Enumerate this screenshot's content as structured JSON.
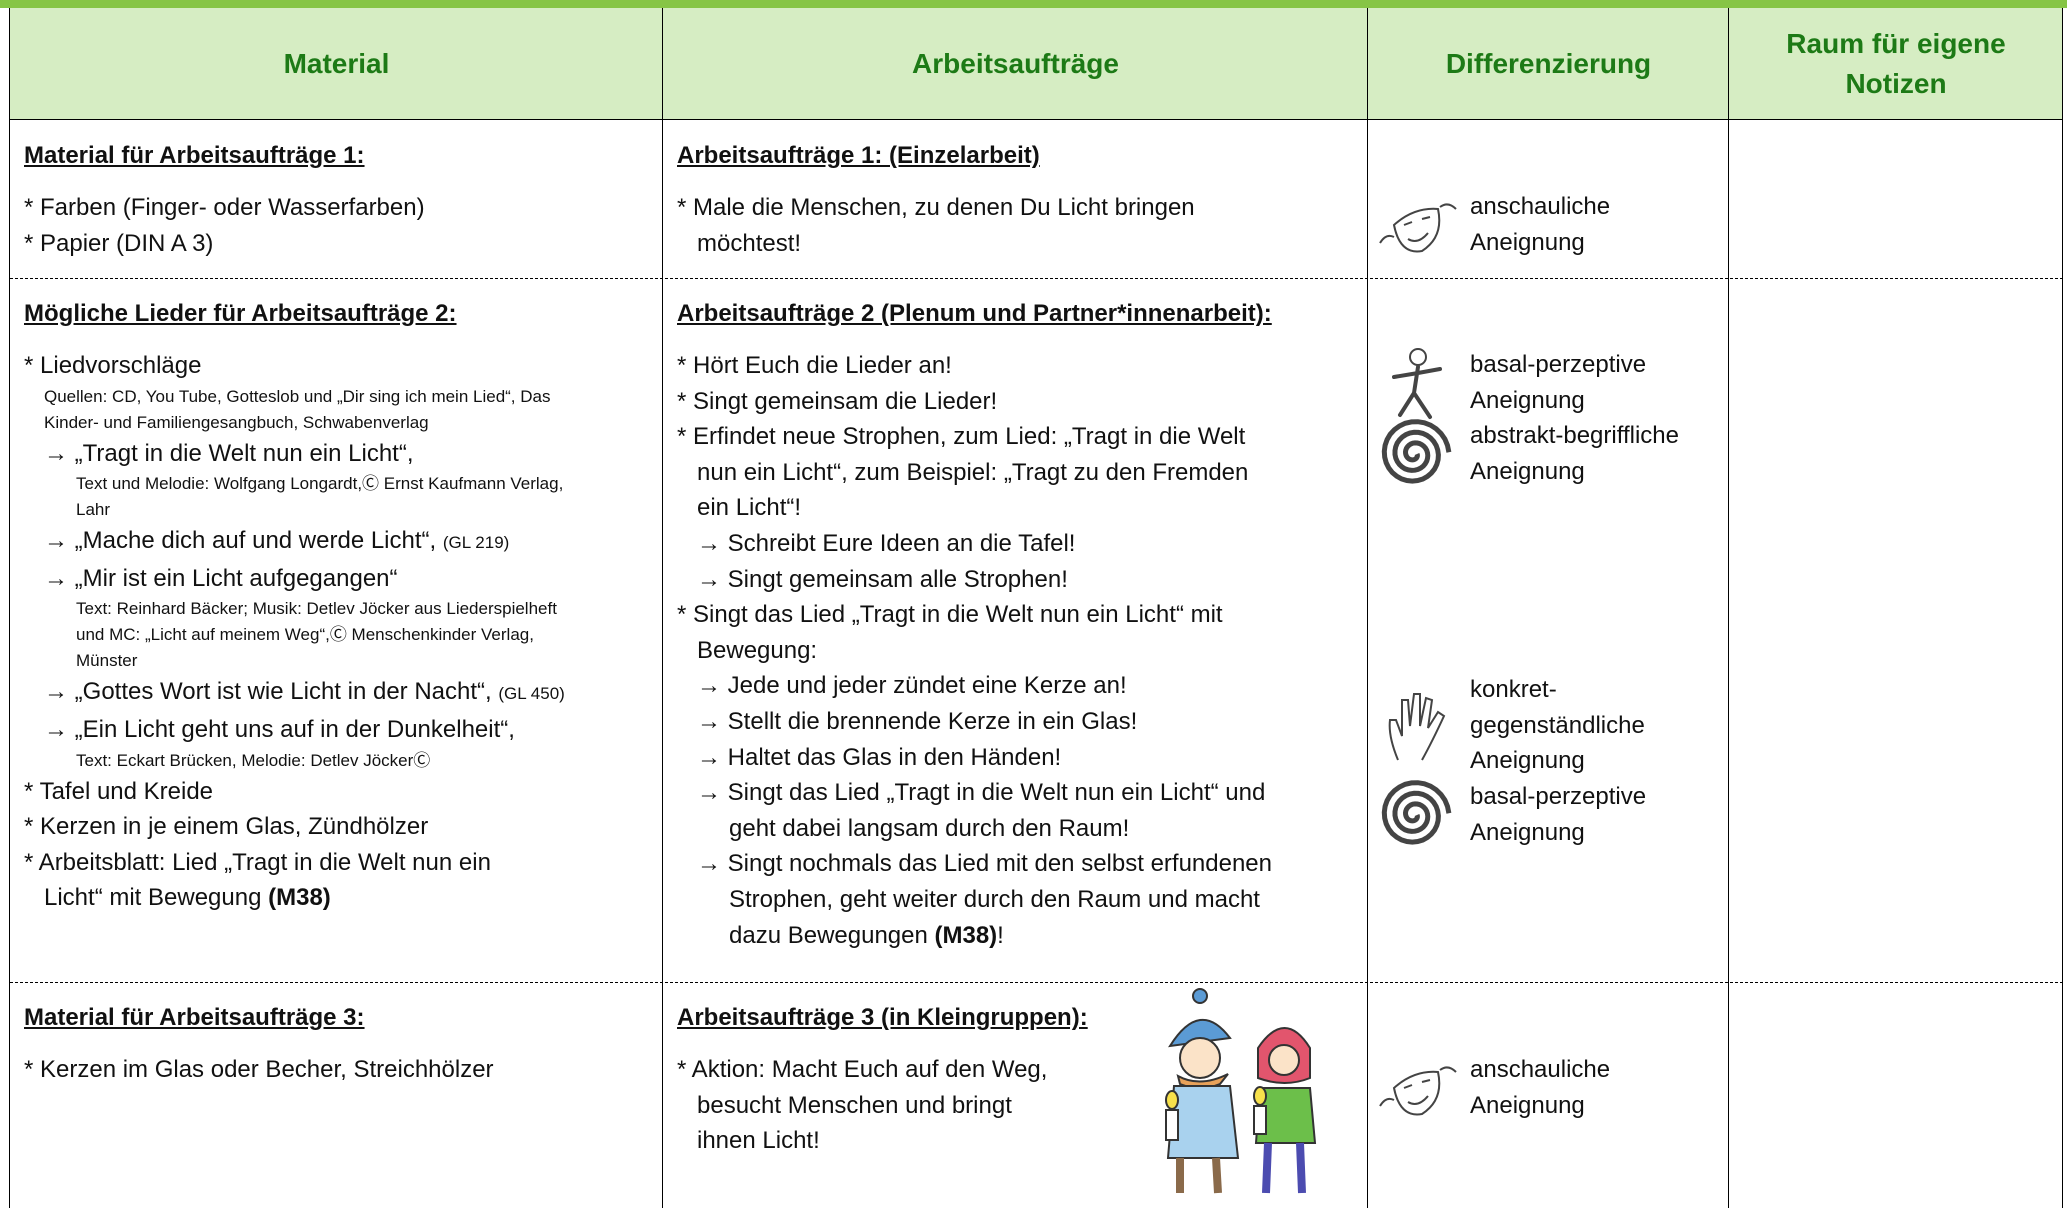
{
  "header": {
    "columns": [
      "Material",
      "Arbeitsaufträge",
      "Differenzierung",
      "Raum für eigene Notizen"
    ]
  },
  "rows": [
    {
      "material": {
        "heading": "Material für Arbeitsaufträge 1:",
        "items": [
          {
            "kind": "bullet",
            "lines": [
              "* Farben (Finger- oder Wasserfarben)"
            ]
          },
          {
            "kind": "bullet",
            "lines": [
              "* Papier (DIN A 3)"
            ]
          }
        ]
      },
      "tasks": {
        "heading": "Arbeitsaufträge 1: (Einzelarbeit)",
        "items": [
          {
            "kind": "bullet",
            "lines": [
              "* Male die Menschen, zu denen Du Licht bringen",
              "möchtest!"
            ]
          }
        ]
      },
      "differentiation": [
        {
          "lines": [
            "anschauliche",
            "Aneignung"
          ]
        }
      ]
    },
    {
      "material": {
        "heading": "Mögliche Lieder für Arbeitsaufträge 2:",
        "items": [
          {
            "kind": "bullet",
            "lines": [
              "* Liedvorschläge"
            ]
          },
          {
            "kind": "note",
            "lines": [
              "Quellen: CD, You Tube, Gotteslob und „Dir sing ich mein Lied“, Das",
              "Kinder- und Familiengesangbuch, Schwabenverlag"
            ]
          },
          {
            "kind": "arrow",
            "lines": [
              "→ „Tragt in die Welt nun ein Licht“,"
            ]
          },
          {
            "kind": "arrownote",
            "lines": [
              "Text und Melodie: Wolfgang Longardt,Ⓒ Ernst Kaufmann Verlag,",
              "Lahr"
            ]
          },
          {
            "kind": "arrow",
            "lines": [
              {
                "text": "→ „Mache dich auf und werde Licht“, ",
                "small": "(GL 219)"
              }
            ]
          },
          {
            "kind": "arrow",
            "lines": [
              "→ „Mir ist ein Licht aufgegangen“"
            ]
          },
          {
            "kind": "arrownote",
            "lines": [
              "Text: Reinhard Bäcker; Musik: Detlev Jöcker aus Liederspielheft",
              "und MC: „Licht auf meinem Weg“,Ⓒ Menschenkinder Verlag,",
              "Münster"
            ]
          },
          {
            "kind": "arrow",
            "lines": [
              {
                "text": "→ „Gottes Wort ist wie Licht in der Nacht“, ",
                "small": "(GL 450)"
              }
            ]
          },
          {
            "kind": "arrow",
            "lines": [
              "→ „Ein Licht geht uns auf in der Dunkelheit“,"
            ]
          },
          {
            "kind": "arrownote",
            "lines": [
              "Text: Eckart Brücken, Melodie: Detlev JöckerⒸ"
            ]
          },
          {
            "kind": "bullet",
            "lines": [
              "* Tafel und Kreide"
            ]
          },
          {
            "kind": "bullet",
            "lines": [
              "* Kerzen in je einem Glas, Zündhölzer"
            ]
          },
          {
            "kind": "bullet",
            "lines": [
              "* Arbeitsblatt: Lied „Tragt in die Welt nun ein",
              {
                "text": "Licht“ mit Bewegung ",
                "bold": "(M38)"
              }
            ]
          }
        ]
      },
      "tasks": {
        "heading": "Arbeitsaufträge 2 (Plenum und Partner*innenarbeit):",
        "items": [
          {
            "kind": "bullet",
            "lines": [
              "* Hört Euch die Lieder an!"
            ]
          },
          {
            "kind": "bullet",
            "lines": [
              "* Singt gemeinsam die Lieder!"
            ]
          },
          {
            "kind": "bullet",
            "lines": [
              "* Erfindet neue Strophen, zum Lied: „Tragt in die Welt",
              "nun ein Licht“, zum Beispiel: „Tragt zu den Fremden",
              "ein Licht“!"
            ]
          },
          {
            "kind": "arrow",
            "lines": [
              "→ Schreibt Eure Ideen an die Tafel!"
            ]
          },
          {
            "kind": "arrow",
            "lines": [
              "→ Singt gemeinsam alle Strophen!"
            ]
          },
          {
            "kind": "bullet",
            "lines": [
              "* Singt das Lied „Tragt in die Welt nun ein Licht“ mit",
              "Bewegung:"
            ]
          },
          {
            "kind": "arrow",
            "lines": [
              "→ Jede und jeder zündet eine Kerze an!"
            ]
          },
          {
            "kind": "arrow",
            "lines": [
              "→ Stellt die brennende Kerze in ein Glas!"
            ]
          },
          {
            "kind": "arrow",
            "lines": [
              "→ Haltet das Glas in den Händen!"
            ]
          },
          {
            "kind": "arrow",
            "lines": [
              "→ Singt das Lied „Tragt in die Welt nun ein Licht“ und",
              "geht dabei langsam durch den Raum!"
            ]
          },
          {
            "kind": "arrow",
            "lines": [
              "→ Singt nochmals das Lied mit den selbst erfundenen",
              "Strophen, geht weiter durch den Raum und macht",
              {
                "text": "dazu Bewegungen ",
                "bold": "(M38)",
                "after": "!"
              }
            ]
          }
        ]
      },
      "differentiation": [
        {
          "lines": [
            "basal-perzeptive",
            "Aneignung"
          ]
        },
        {
          "lines": [
            "abstrakt-begriffliche",
            "Aneignung"
          ]
        },
        {
          "lines": [
            "konkret-",
            "gegenständliche",
            "Aneignung"
          ]
        },
        {
          "lines": [
            "basal-perzeptive",
            "Aneignung"
          ]
        }
      ]
    },
    {
      "material": {
        "heading": "Material für Arbeitsaufträge 3:",
        "items": [
          {
            "kind": "bullet",
            "lines": [
              "* Kerzen im Glas oder Becher, Streichhölzer"
            ]
          }
        ]
      },
      "tasks": {
        "heading": "Arbeitsaufträge 3 (in Kleingruppen):",
        "items": [
          {
            "kind": "bullet",
            "lines": [
              "* Aktion: Macht Euch auf den Weg,",
              "besucht Menschen und bringt",
              "ihnen Licht!"
            ]
          }
        ]
      },
      "differentiation": [
        {
          "lines": [
            "anschauliche",
            "Aneignung"
          ]
        }
      ]
    }
  ]
}
